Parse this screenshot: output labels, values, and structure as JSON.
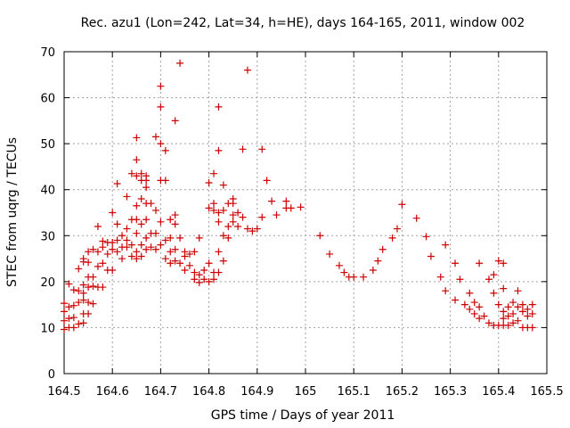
{
  "chart_data": {
    "type": "scatter",
    "title": "Rec. azu1 (Lon=242, Lat=34, h=HE), days 164-165, 2011, window 002",
    "xlabel": "GPS time / Days of year 2011",
    "ylabel": "STEC from uqrg / TECUs",
    "xlim": [
      164.5,
      165.5
    ],
    "ylim": [
      0,
      70
    ],
    "xticks": [
      "164.5",
      "164.6",
      "164.7",
      "164.8",
      "164.9",
      "165",
      "165.1",
      "165.2",
      "165.3",
      "165.4",
      "165.5"
    ],
    "yticks": [
      "0",
      "10",
      "20",
      "30",
      "40",
      "50",
      "60",
      "70"
    ],
    "grid": true,
    "marker": "+",
    "color": "#cc0000",
    "points": [
      [
        164.5,
        9.6
      ],
      [
        164.5,
        11.5
      ],
      [
        164.5,
        13.5
      ],
      [
        164.5,
        15.3
      ],
      [
        164.51,
        10.0
      ],
      [
        164.51,
        12.0
      ],
      [
        164.51,
        14.5
      ],
      [
        164.51,
        19.5
      ],
      [
        164.52,
        10.0
      ],
      [
        164.52,
        12.2
      ],
      [
        164.52,
        14.8
      ],
      [
        164.52,
        18.2
      ],
      [
        164.53,
        10.8
      ],
      [
        164.53,
        15.5
      ],
      [
        164.53,
        18.0
      ],
      [
        164.53,
        22.8
      ],
      [
        164.54,
        11.0
      ],
      [
        164.54,
        13.0
      ],
      [
        164.54,
        16.0
      ],
      [
        164.54,
        17.5
      ],
      [
        164.54,
        19.3
      ],
      [
        164.54,
        24.3
      ],
      [
        164.54,
        25.0
      ],
      [
        164.55,
        13.0
      ],
      [
        164.55,
        15.5
      ],
      [
        164.55,
        18.8
      ],
      [
        164.55,
        21.0
      ],
      [
        164.55,
        24.2
      ],
      [
        164.55,
        26.5
      ],
      [
        164.56,
        15.2
      ],
      [
        164.56,
        19.0
      ],
      [
        164.56,
        21.0
      ],
      [
        164.56,
        27.0
      ],
      [
        164.57,
        18.8
      ],
      [
        164.57,
        23.3
      ],
      [
        164.57,
        26.5
      ],
      [
        164.57,
        32.0
      ],
      [
        164.58,
        18.8
      ],
      [
        164.58,
        24.0
      ],
      [
        164.58,
        27.5
      ],
      [
        164.58,
        28.8
      ],
      [
        164.59,
        22.5
      ],
      [
        164.59,
        26.0
      ],
      [
        164.59,
        28.5
      ],
      [
        164.6,
        22.5
      ],
      [
        164.6,
        27.0
      ],
      [
        164.6,
        28.5
      ],
      [
        164.6,
        35.0
      ],
      [
        164.61,
        26.5
      ],
      [
        164.61,
        29.0
      ],
      [
        164.61,
        32.5
      ],
      [
        164.61,
        41.3
      ],
      [
        164.62,
        25.0
      ],
      [
        164.62,
        27.5
      ],
      [
        164.62,
        30.0
      ],
      [
        164.63,
        27.5
      ],
      [
        164.63,
        29.0
      ],
      [
        164.63,
        31.5
      ],
      [
        164.63,
        38.5
      ],
      [
        164.64,
        25.5
      ],
      [
        164.64,
        28.0
      ],
      [
        164.64,
        33.5
      ],
      [
        164.64,
        43.5
      ],
      [
        164.65,
        25.0
      ],
      [
        164.65,
        26.5
      ],
      [
        164.65,
        30.5
      ],
      [
        164.65,
        33.5
      ],
      [
        164.65,
        36.5
      ],
      [
        164.65,
        43.0
      ],
      [
        164.65,
        46.5
      ],
      [
        164.65,
        51.3
      ],
      [
        164.66,
        25.5
      ],
      [
        164.66,
        28.0
      ],
      [
        164.66,
        32.5
      ],
      [
        164.66,
        38.0
      ],
      [
        164.66,
        42.0
      ],
      [
        164.66,
        43.5
      ],
      [
        164.67,
        27.0
      ],
      [
        164.67,
        29.5
      ],
      [
        164.67,
        33.5
      ],
      [
        164.67,
        37.0
      ],
      [
        164.67,
        42.0
      ],
      [
        164.67,
        43.0
      ],
      [
        164.67,
        40.5
      ],
      [
        164.68,
        27.5
      ],
      [
        164.68,
        30.5
      ],
      [
        164.68,
        37.0
      ],
      [
        164.69,
        27.0
      ],
      [
        164.69,
        30.5
      ],
      [
        164.69,
        35.5
      ],
      [
        164.69,
        51.5
      ],
      [
        164.7,
        28.0
      ],
      [
        164.7,
        33.0
      ],
      [
        164.7,
        42.0
      ],
      [
        164.7,
        50.0
      ],
      [
        164.7,
        58.0
      ],
      [
        164.7,
        62.5
      ],
      [
        164.71,
        25.0
      ],
      [
        164.71,
        29.0
      ],
      [
        164.71,
        42.0
      ],
      [
        164.71,
        48.5
      ],
      [
        164.72,
        24.0
      ],
      [
        164.72,
        26.5
      ],
      [
        164.72,
        29.5
      ],
      [
        164.72,
        33.5
      ],
      [
        164.73,
        24.5
      ],
      [
        164.73,
        27.0
      ],
      [
        164.73,
        32.5
      ],
      [
        164.73,
        34.5
      ],
      [
        164.73,
        55.0
      ],
      [
        164.74,
        24.0
      ],
      [
        164.74,
        29.5
      ],
      [
        164.74,
        67.5
      ],
      [
        164.75,
        22.5
      ],
      [
        164.75,
        25.5
      ],
      [
        164.75,
        26.5
      ],
      [
        164.76,
        23.5
      ],
      [
        164.76,
        26.0
      ],
      [
        164.77,
        20.5
      ],
      [
        164.77,
        22.0
      ],
      [
        164.77,
        26.5
      ],
      [
        164.78,
        19.8
      ],
      [
        164.78,
        21.5
      ],
      [
        164.78,
        29.5
      ],
      [
        164.79,
        20.5
      ],
      [
        164.79,
        22.5
      ],
      [
        164.8,
        20.0
      ],
      [
        164.8,
        24.0
      ],
      [
        164.8,
        36.0
      ],
      [
        164.8,
        41.5
      ],
      [
        164.81,
        20.5
      ],
      [
        164.81,
        22.0
      ],
      [
        164.81,
        35.5
      ],
      [
        164.81,
        37.0
      ],
      [
        164.81,
        43.5
      ],
      [
        164.82,
        22.0
      ],
      [
        164.82,
        26.5
      ],
      [
        164.82,
        33.0
      ],
      [
        164.82,
        35.0
      ],
      [
        164.82,
        48.5
      ],
      [
        164.82,
        58.0
      ],
      [
        164.83,
        24.5
      ],
      [
        164.83,
        30.0
      ],
      [
        164.83,
        35.5
      ],
      [
        164.83,
        41.0
      ],
      [
        164.84,
        29.5
      ],
      [
        164.84,
        32.0
      ],
      [
        164.84,
        37.0
      ],
      [
        164.85,
        33.0
      ],
      [
        164.85,
        34.5
      ],
      [
        164.85,
        37.0
      ],
      [
        164.85,
        38.0
      ],
      [
        164.86,
        32.0
      ],
      [
        164.86,
        35.0
      ],
      [
        164.87,
        34.0
      ],
      [
        164.87,
        48.8
      ],
      [
        164.88,
        31.5
      ],
      [
        164.88,
        66.0
      ],
      [
        164.89,
        31.0
      ],
      [
        164.9,
        31.5
      ],
      [
        164.91,
        34.0
      ],
      [
        164.91,
        48.8
      ],
      [
        164.92,
        42.0
      ],
      [
        164.93,
        37.5
      ],
      [
        164.94,
        34.5
      ],
      [
        164.96,
        36.0
      ],
      [
        164.96,
        37.5
      ],
      [
        164.97,
        36.0
      ],
      [
        164.99,
        36.2
      ],
      [
        165.03,
        30.0
      ],
      [
        165.05,
        26.0
      ],
      [
        165.07,
        23.5
      ],
      [
        165.08,
        22.0
      ],
      [
        165.09,
        21.0
      ],
      [
        165.1,
        21.0
      ],
      [
        165.12,
        21.0
      ],
      [
        165.14,
        22.5
      ],
      [
        165.15,
        24.5
      ],
      [
        165.16,
        27.0
      ],
      [
        165.18,
        29.5
      ],
      [
        165.19,
        31.5
      ],
      [
        165.2,
        36.8
      ],
      [
        165.23,
        33.8
      ],
      [
        165.25,
        29.8
      ],
      [
        165.26,
        25.5
      ],
      [
        165.28,
        21.0
      ],
      [
        165.29,
        18.0
      ],
      [
        165.29,
        28.0
      ],
      [
        165.31,
        16.0
      ],
      [
        165.31,
        24.0
      ],
      [
        165.32,
        20.5
      ],
      [
        165.33,
        15.0
      ],
      [
        165.34,
        14.0
      ],
      [
        165.34,
        17.5
      ],
      [
        165.35,
        13.0
      ],
      [
        165.35,
        15.5
      ],
      [
        165.36,
        12.0
      ],
      [
        165.36,
        14.5
      ],
      [
        165.36,
        24.0
      ],
      [
        165.37,
        12.5
      ],
      [
        165.38,
        11.0
      ],
      [
        165.38,
        20.5
      ],
      [
        165.39,
        10.5
      ],
      [
        165.39,
        17.5
      ],
      [
        165.39,
        21.5
      ],
      [
        165.4,
        10.5
      ],
      [
        165.4,
        15.0
      ],
      [
        165.4,
        24.5
      ],
      [
        165.41,
        10.5
      ],
      [
        165.41,
        12.0
      ],
      [
        165.41,
        13.5
      ],
      [
        165.41,
        18.5
      ],
      [
        165.41,
        24.0
      ],
      [
        165.42,
        10.5
      ],
      [
        165.42,
        12.5
      ],
      [
        165.42,
        14.5
      ],
      [
        165.43,
        11.0
      ],
      [
        165.43,
        13.0
      ],
      [
        165.43,
        15.5
      ],
      [
        165.44,
        11.5
      ],
      [
        165.44,
        14.5
      ],
      [
        165.44,
        18.0
      ],
      [
        165.45,
        10.0
      ],
      [
        165.45,
        13.5
      ],
      [
        165.45,
        15.0
      ],
      [
        165.46,
        10.0
      ],
      [
        165.46,
        12.5
      ],
      [
        165.46,
        14.0
      ],
      [
        165.47,
        10.0
      ],
      [
        165.47,
        13.0
      ],
      [
        165.47,
        15.0
      ]
    ]
  }
}
